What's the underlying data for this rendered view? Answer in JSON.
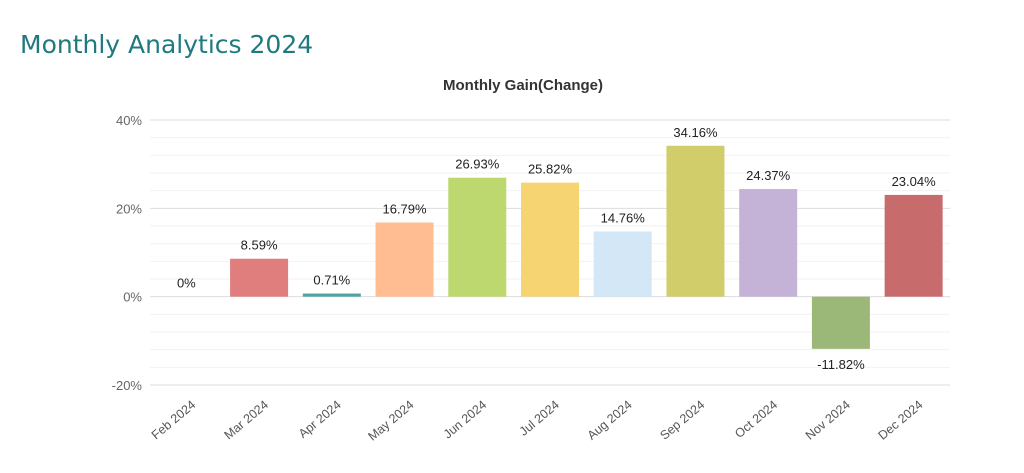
{
  "page": {
    "title": "Monthly Analytics 2024"
  },
  "chart_data": {
    "type": "bar",
    "title": "Monthly Gain(Change)",
    "categories": [
      "Feb 2024",
      "Mar 2024",
      "Apr 2024",
      "May 2024",
      "Jun 2024",
      "Jul 2024",
      "Aug 2024",
      "Sep 2024",
      "Oct 2024",
      "Nov 2024",
      "Dec 2024"
    ],
    "values": [
      0,
      8.59,
      0.71,
      16.79,
      26.93,
      25.82,
      14.76,
      34.16,
      24.37,
      -11.82,
      23.04
    ],
    "value_labels": [
      "0%",
      "8.59%",
      "0.71%",
      "16.79%",
      "26.93%",
      "25.82%",
      "14.76%",
      "34.16%",
      "24.37%",
      "-11.82%",
      "23.04%"
    ],
    "colors": [
      "#e8e8e8",
      "#e07d7d",
      "#4fa3a5",
      "#ffbd91",
      "#bdd86e",
      "#f6d472",
      "#d3e7f7",
      "#d0cd6a",
      "#c5b3d7",
      "#9bb878",
      "#c76b6d"
    ],
    "ylim": [
      -20,
      40
    ],
    "yticks": [
      -20,
      0,
      20,
      40
    ],
    "ytick_labels": [
      "-20%",
      "0%",
      "20%",
      "40%"
    ],
    "grid": true,
    "legend": "none",
    "xlabel": "",
    "ylabel": ""
  }
}
